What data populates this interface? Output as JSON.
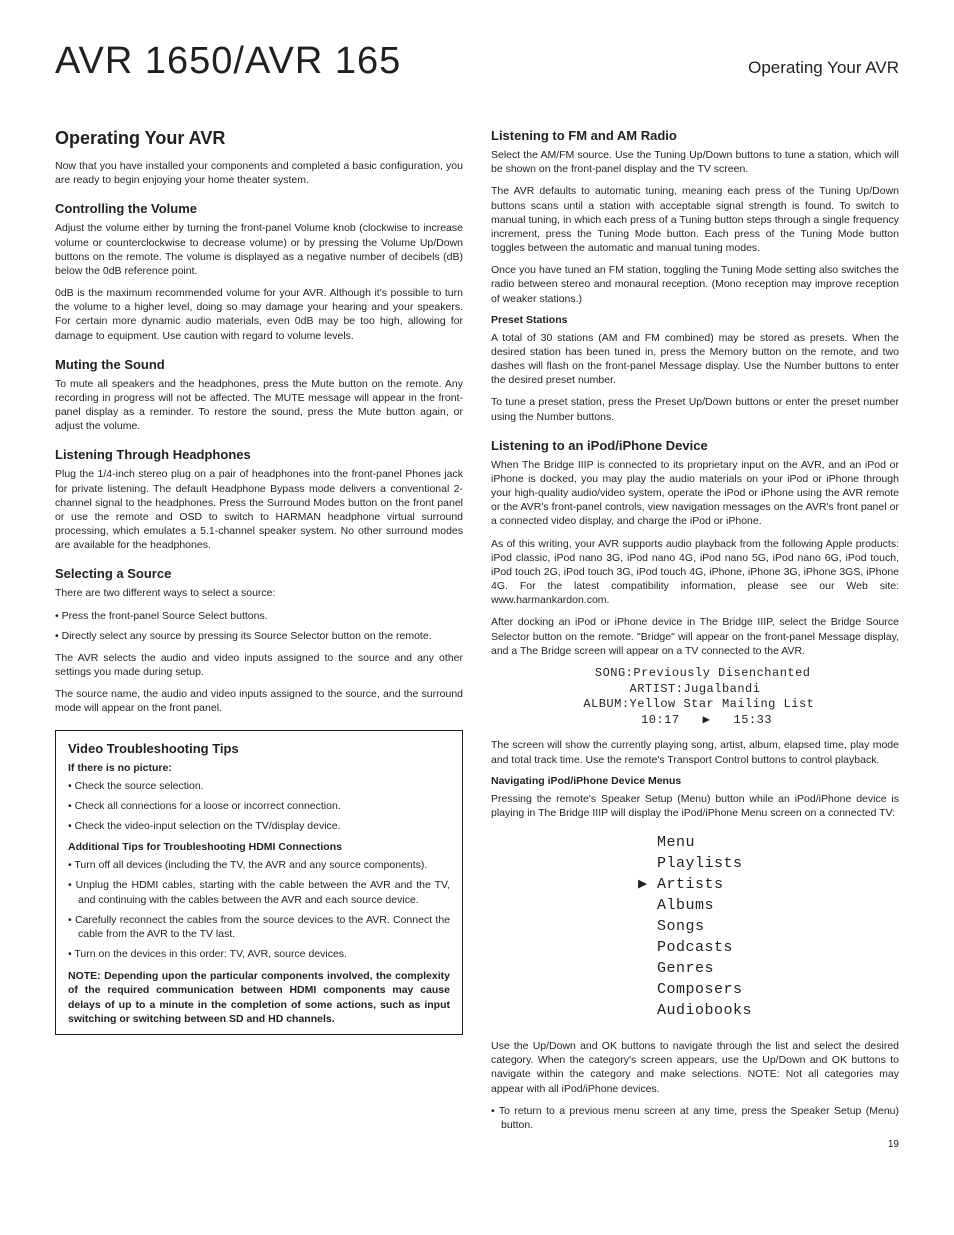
{
  "header": {
    "product_title": "AVR 1650/AVR 165",
    "section_label": "Operating Your AVR"
  },
  "page_number": "19",
  "left": {
    "main_heading": "Operating Your AVR",
    "intro": "Now that you have installed your components and completed a basic configuration, you are ready to begin enjoying your home theater system.",
    "volume": {
      "heading": "Controlling the Volume",
      "p1": "Adjust the volume either by turning the front-panel Volume knob (clockwise to increase volume or counterclockwise to decrease volume) or by pressing the Volume Up/Down buttons on the remote. The volume is displayed as a negative number of decibels (dB) below the 0dB reference point.",
      "p2": "0dB is the maximum recommended volume for your AVR. Although it's possible to turn the volume to a higher level, doing so may damage your hearing and your speakers. For certain more dynamic audio materials, even 0dB may be too high, allowing for damage to equipment. Use caution with regard to volume levels."
    },
    "muting": {
      "heading": "Muting the Sound",
      "p1": "To mute all speakers and the headphones, press the Mute button on the remote. Any recording in progress will not be affected. The MUTE message will appear in the front-panel display as a reminder. To restore the sound, press the Mute button again, or adjust the volume."
    },
    "headphones": {
      "heading": "Listening Through Headphones",
      "p1": "Plug the 1/4-inch stereo plug on a pair of headphones into the front-panel Phones jack for private listening. The default Headphone Bypass mode delivers a conventional 2-channel signal to the headphones. Press the Surround Modes button on the front panel or use the remote and OSD to switch to HARMAN headphone virtual surround processing, which emulates a 5.1-channel speaker system. No other surround modes are available for the headphones."
    },
    "source": {
      "heading": "Selecting a Source",
      "p1": "There are two different ways to select a source:",
      "bullets": [
        "Press the front-panel Source Select buttons.",
        "Directly select any source by pressing its Source Selector button on the remote."
      ],
      "p2": "The AVR selects the audio and video inputs assigned to the source and any other settings you made during setup.",
      "p3": "The source name, the audio and video inputs assigned to the source, and the surround mode will appear on the front panel."
    },
    "box": {
      "heading": "Video Troubleshooting Tips",
      "sub1": "If there is no picture:",
      "list1": [
        "Check the source selection.",
        "Check all connections for a loose or incorrect connection.",
        "Check the video-input selection on the TV/display device."
      ],
      "sub2": "Additional Tips for Troubleshooting HDMI Connections",
      "list2": [
        "Turn off all devices (including the TV, the AVR and any source components).",
        "Unplug the HDMI cables, starting with the cable between the AVR and the TV, and continuing with the cables between the AVR and each source device.",
        "Carefully reconnect the cables from the source devices to the AVR. Connect the cable from the AVR to the TV last.",
        "Turn on the devices in this order: TV, AVR, source devices."
      ],
      "note": "NOTE: Depending upon the particular components involved, the complexity of the required communication between HDMI components may cause delays of up to a minute in the completion of some actions, such as input switching or switching between SD and HD channels."
    }
  },
  "right": {
    "radio": {
      "heading": "Listening to FM and AM Radio",
      "p1": "Select the AM/FM source. Use the Tuning Up/Down buttons to tune a station, which will be shown on the front-panel display and the TV screen.",
      "p2": "The AVR defaults to automatic tuning, meaning each press of the Tuning Up/Down buttons scans until a station with acceptable signal strength is found. To switch to manual tuning, in which each press of a Tuning button steps through a single frequency increment, press the Tuning Mode button. Each press of the Tuning Mode button toggles between the automatic and manual tuning modes.",
      "p3": "Once you have tuned an FM station, toggling the Tuning Mode setting also switches the radio between stereo and monaural reception. (Mono reception may improve reception of weaker stations.)",
      "preset_sub": "Preset Stations",
      "p4": "A total of 30 stations (AM and FM combined) may be stored as presets. When the desired station has been tuned in, press the Memory button on the remote, and two dashes will flash on the front-panel Message display. Use the Number buttons to enter the desired preset number.",
      "p5": "To tune a preset station, press the Preset Up/Down buttons or enter the preset number using the Number buttons."
    },
    "ipod": {
      "heading": "Listening to an iPod/iPhone Device",
      "p1": "When The Bridge IIIP is connected to its proprietary input on the AVR, and an iPod or iPhone is docked, you may play the audio materials on your iPod or iPhone through your high-quality audio/video system, operate the iPod or iPhone using the AVR remote or the AVR's front-panel controls, view navigation messages on the AVR's front panel or a connected video display, and charge the iPod or iPhone.",
      "p2": "As of this writing, your AVR supports audio playback from the following Apple products: iPod classic, iPod nano 3G, iPod nano 4G, iPod nano 5G, iPod nano 6G, iPod touch, iPod touch 2G, iPod touch 3G, iPod touch 4G, iPhone, iPhone 3G, iPhone 3GS, iPhone 4G. For the latest compatibility information, please see our Web site: www.harmankardon.com.",
      "p3": "After docking an iPod or iPhone device in The Bridge IIIP, select the Bridge Source Selector button on the remote. \"Bridge\" will appear on the front-panel Message display, and a The Bridge screen will appear on a TV connected to the AVR.",
      "display_block": "  SONG:Previously Disenchanted\nARTIST:Jugalbandi\n ALBUM:Yellow Star Mailing List\n   10:17   ▶   15:33",
      "p4": "The screen will show the currently playing song, artist, album, elapsed time, play mode and total track time. Use the remote's Transport Control buttons to control playback.",
      "nav_sub": "Navigating iPod/iPhone Device Menus",
      "p5": "Pressing the remote's Speaker Setup (Menu) button while an iPod/iPhone device is playing in The Bridge IIIP will display the iPod/iPhone Menu screen on a connected TV:",
      "menu_block": "  Menu\n  Playlists\n▶ Artists\n  Albums\n  Songs\n  Podcasts\n  Genres\n  Composers\n  Audiobooks",
      "p6": "Use the Up/Down and OK buttons to navigate through the list and select the desired category. When the category's screen appears, use the Up/Down and OK buttons to navigate within the category and make selections. NOTE: Not all categories may appear with all iPod/iPhone devices.",
      "bullet1": "To return to a previous menu screen at any time, press the Speaker Setup (Menu) button."
    }
  }
}
